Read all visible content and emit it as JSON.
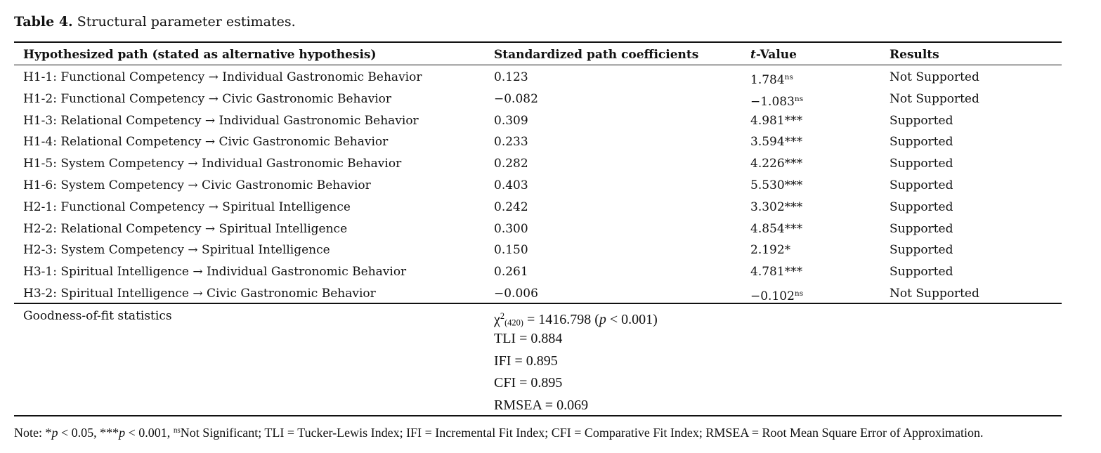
{
  "header": {
    "title": [
      {
        "text": "Table 4.",
        "style": "b"
      },
      {
        "text": " Structural parameter estimates.",
        "style": ""
      }
    ]
  },
  "table": {
    "columns": [
      [
        {
          "text": "Hypothesized path (stated as alternative hypothesis)",
          "style": ""
        }
      ],
      [
        {
          "text": "Standardized path coefficients",
          "style": ""
        }
      ],
      [
        {
          "text": "t",
          "style": "i"
        },
        {
          "text": "-Value",
          "style": ""
        }
      ],
      [
        {
          "text": "Results",
          "style": ""
        }
      ]
    ],
    "rows": [
      [
        "H1-1: Functional Competency → Individual Gastronomic Behavior",
        "0.123",
        [
          {
            "text": "1.784",
            "style": ""
          },
          {
            "text": "ns",
            "style": "sup"
          }
        ],
        "Not Supported"
      ],
      [
        "H1-2: Functional Competency → Civic Gastronomic Behavior",
        "−0.082",
        [
          {
            "text": "−1.083",
            "style": ""
          },
          {
            "text": "ns",
            "style": "sup"
          }
        ],
        "Not Supported"
      ],
      [
        "H1-3: Relational Competency → Individual Gastronomic Behavior",
        "0.309",
        [
          {
            "text": "4.981***",
            "style": ""
          }
        ],
        "Supported"
      ],
      [
        "H1-4: Relational Competency → Civic Gastronomic Behavior",
        "0.233",
        [
          {
            "text": "3.594***",
            "style": ""
          }
        ],
        "Supported"
      ],
      [
        "H1-5: System Competency → Individual Gastronomic Behavior",
        "0.282",
        [
          {
            "text": "4.226***",
            "style": ""
          }
        ],
        "Supported"
      ],
      [
        "H1-6: System Competency → Civic Gastronomic Behavior",
        "0.403",
        [
          {
            "text": "5.530***",
            "style": ""
          }
        ],
        "Supported"
      ],
      [
        "H2-1: Functional Competency → Spiritual Intelligence",
        "0.242",
        [
          {
            "text": "3.302***",
            "style": ""
          }
        ],
        "Supported"
      ],
      [
        "H2-2: Relational Competency → Spiritual Intelligence",
        "0.300",
        [
          {
            "text": "4.854***",
            "style": ""
          }
        ],
        "Supported"
      ],
      [
        "H2-3: System Competency → Spiritual Intelligence",
        "0.150",
        [
          {
            "text": "2.192*",
            "style": ""
          }
        ],
        "Supported"
      ],
      [
        "H3-1: Spiritual Intelligence → Individual Gastronomic Behavior",
        "0.261",
        [
          {
            "text": "4.781***",
            "style": ""
          }
        ],
        "Supported"
      ],
      [
        "H3-2: Spiritual Intelligence → Civic Gastronomic Behavior",
        "−0.006",
        [
          {
            "text": "−0.102",
            "style": ""
          },
          {
            "text": "ns",
            "style": "sup"
          }
        ],
        "Not Supported"
      ]
    ],
    "fit_label": "Goodness-of-fit statistics",
    "fit_stats": [
      [
        {
          "text": "χ",
          "style": ""
        },
        {
          "text": "2",
          "style": "sup"
        },
        {
          "text": "(420)",
          "style": "sub"
        },
        {
          "text": " = 1416.798 (",
          "style": ""
        },
        {
          "text": "p",
          "style": "i"
        },
        {
          "text": " < 0.001)",
          "style": ""
        }
      ],
      [
        {
          "text": "TLI = 0.884",
          "style": ""
        }
      ],
      [
        {
          "text": "IFI = 0.895",
          "style": ""
        }
      ],
      [
        {
          "text": "CFI = 0.895",
          "style": ""
        }
      ],
      [
        {
          "text": "RMSEA = 0.069",
          "style": ""
        }
      ]
    ]
  },
  "note": [
    {
      "text": "Note: *",
      "style": ""
    },
    {
      "text": "p",
      "style": "i"
    },
    {
      "text": " < 0.05, ***",
      "style": ""
    },
    {
      "text": "p",
      "style": "i"
    },
    {
      "text": " < 0.001, ",
      "style": ""
    },
    {
      "text": "ns",
      "style": "sup"
    },
    {
      "text": "Not Significant; TLI = Tucker-Lewis Index; IFI = Incremental Fit Index; CFI = Comparative Fit Index; RMSEA = Root Mean Square Error of Approximation.",
      "style": ""
    }
  ]
}
